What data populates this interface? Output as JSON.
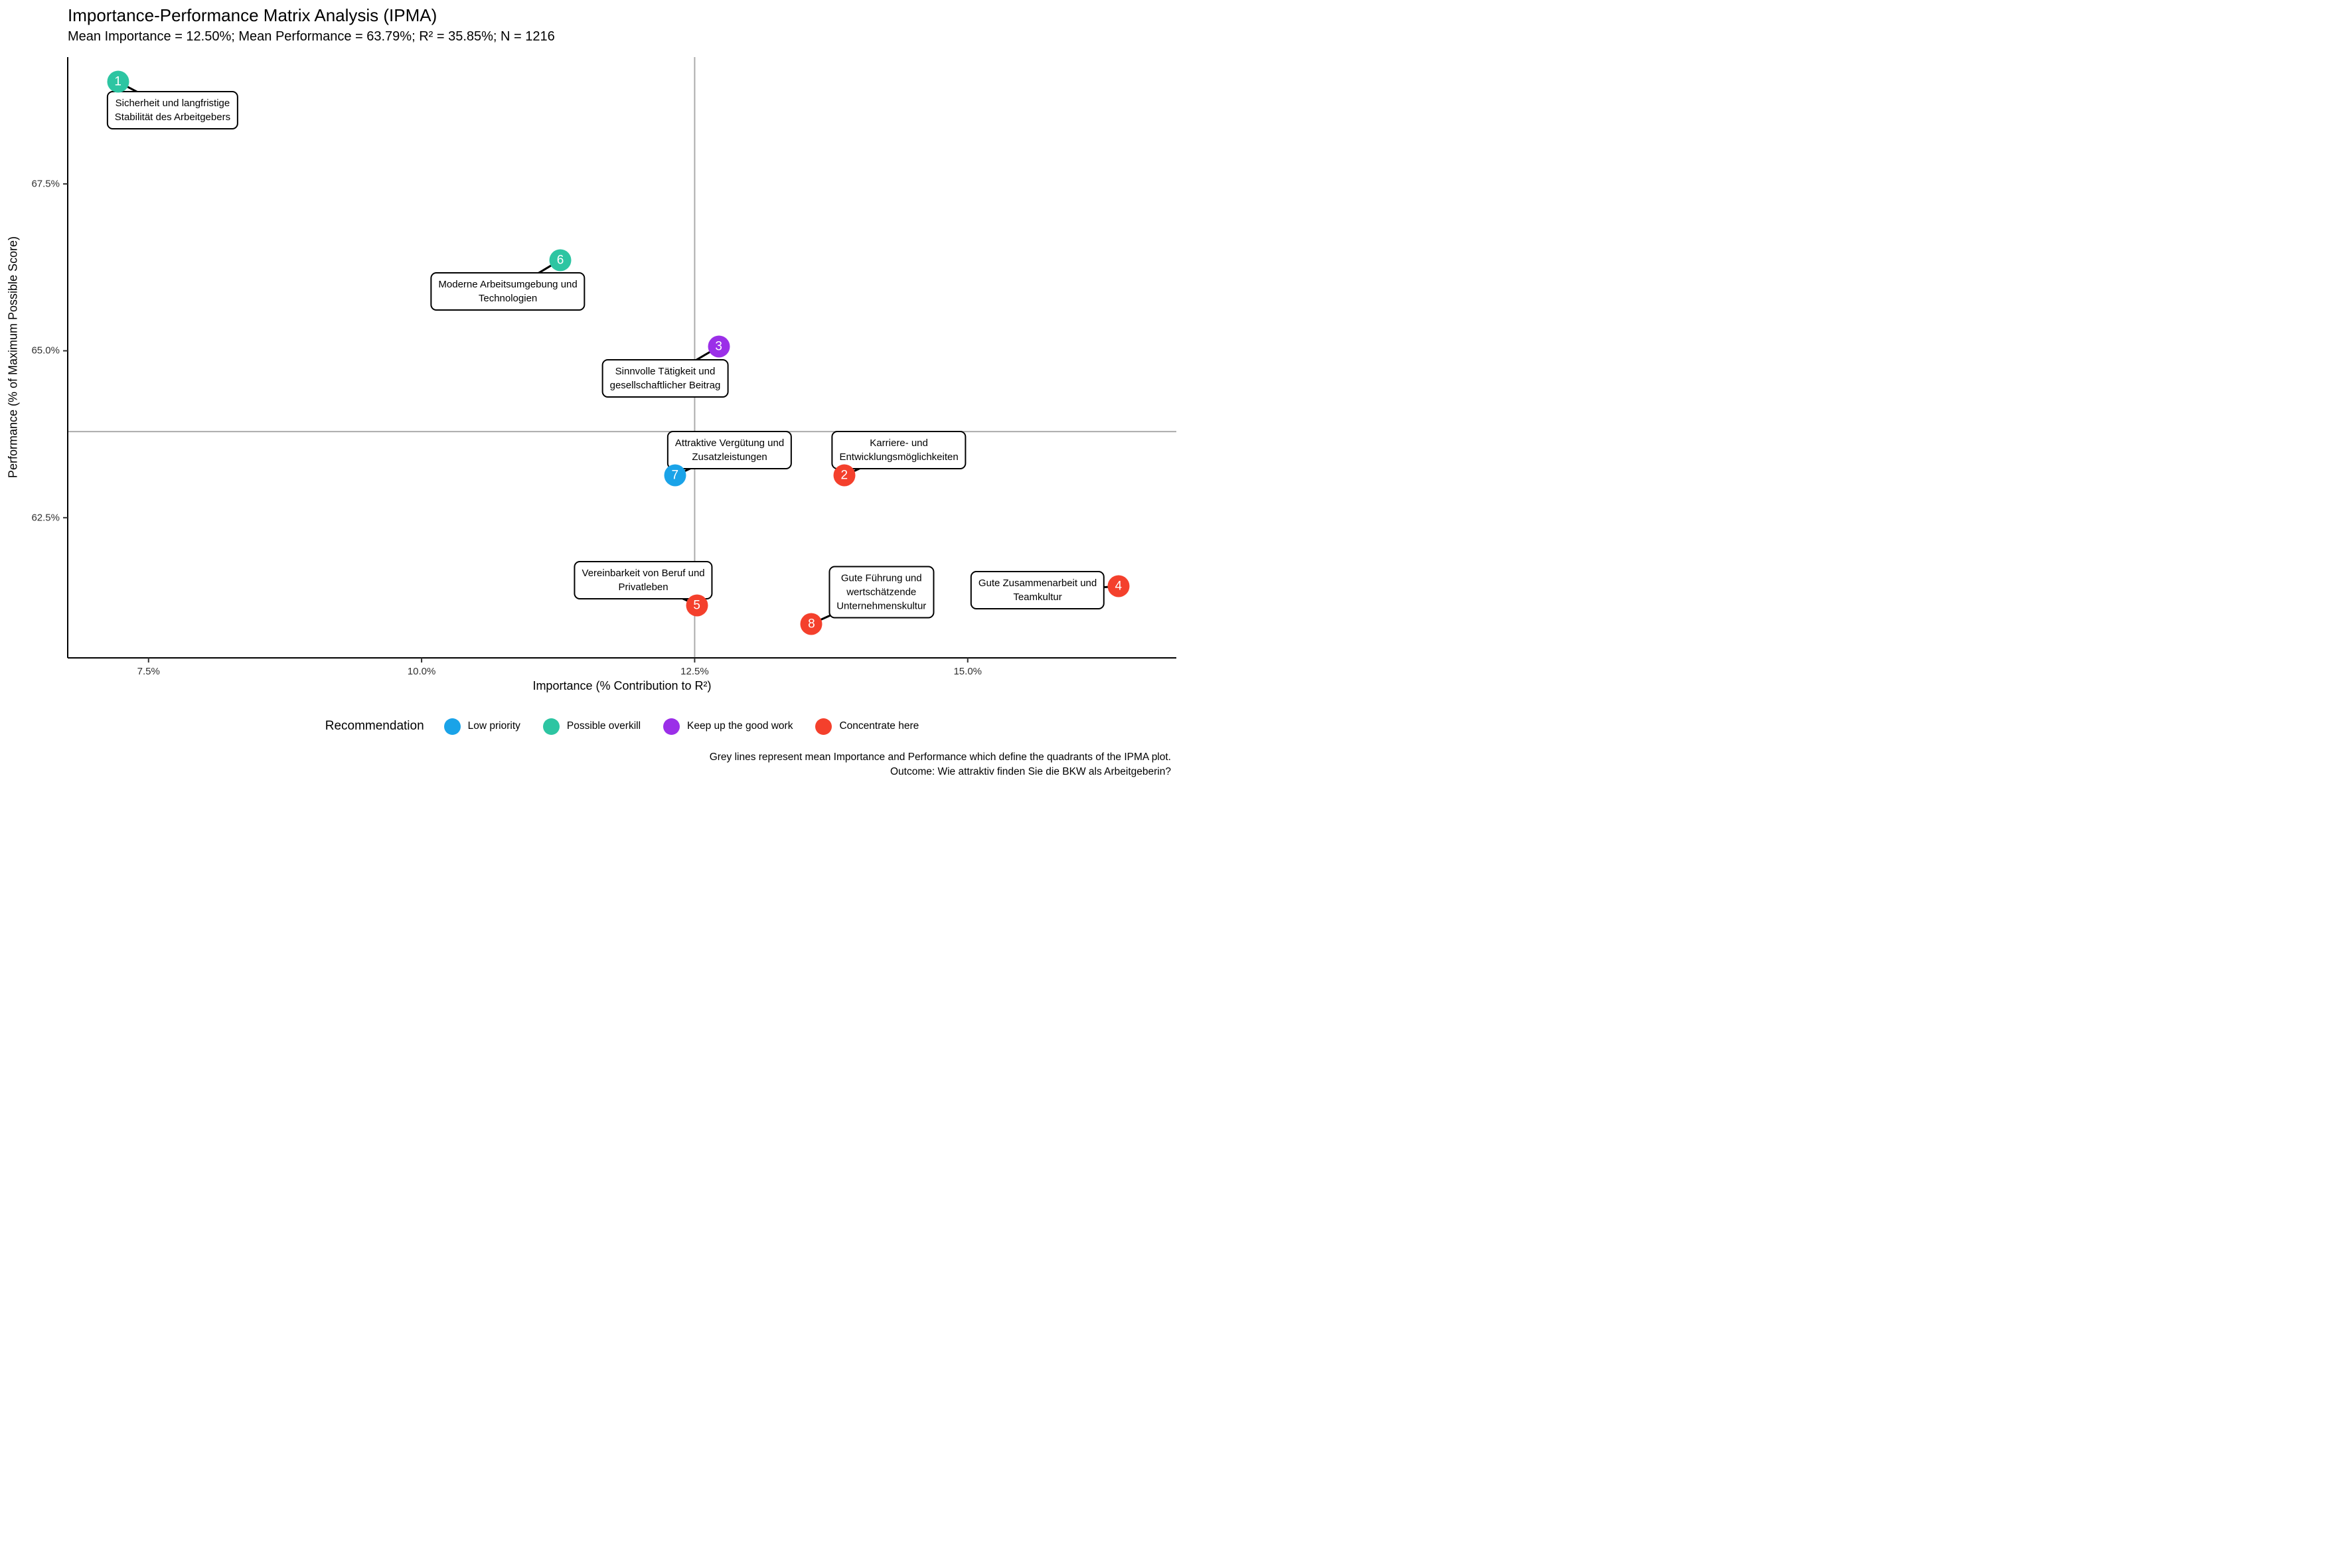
{
  "title": "Importance-Performance Matrix Analysis (IPMA)",
  "subtitle": "Mean Importance = 12.50%; Mean Performance = 63.79%; R² = 35.85%; N = 1216",
  "chart_data": {
    "type": "scatter",
    "title": "Importance-Performance Matrix Analysis (IPMA)",
    "subtitle": "Mean Importance = 12.50%; Mean Performance = 63.79%; R² = 35.85%; N = 1216",
    "xlabel": "Importance (% Contribution to R²)",
    "ylabel": "Performance (% of Maximum Possible Score)",
    "x_ticks": [
      {
        "value": 7.5,
        "label": "7.5%"
      },
      {
        "value": 10.0,
        "label": "10.0%"
      },
      {
        "value": 12.5,
        "label": "12.5%"
      },
      {
        "value": 15.0,
        "label": "15.0%"
      }
    ],
    "y_ticks": [
      {
        "value": 62.5,
        "label": "62.5%"
      },
      {
        "value": 65.0,
        "label": "65.0%"
      },
      {
        "value": 67.5,
        "label": "67.5%"
      }
    ],
    "xlim": [
      6.76,
      16.91
    ],
    "ylim": [
      60.4,
      69.4
    ],
    "grid": false,
    "mean_importance_pct": 12.5,
    "mean_performance_pct": 63.79,
    "r_squared_pct": 35.85,
    "n": 1216,
    "mean_line_color": "#ABABAB",
    "points": [
      {
        "id": "1",
        "x": 7.22,
        "y": 69.03,
        "recommendation": "Possible overkill",
        "label_lines": [
          "Sicherheit und langfristige",
          "Stabilität des Arbeitgebers"
        ],
        "label_x": 7.72,
        "label_y": 68.6
      },
      {
        "id": "6",
        "x": 11.27,
        "y": 66.36,
        "recommendation": "Possible overkill",
        "label_lines": [
          "Moderne Arbeitsumgebung und",
          "Technologien"
        ],
        "label_x": 10.79,
        "label_y": 65.89
      },
      {
        "id": "3",
        "x": 12.72,
        "y": 65.06,
        "recommendation": "Keep up the good work",
        "label_lines": [
          "Sinnvolle Tätigkeit und",
          "gesellschaftlicher Beitrag"
        ],
        "label_x": 12.23,
        "label_y": 64.59
      },
      {
        "id": "7",
        "x": 12.32,
        "y": 63.13,
        "recommendation": "Low priority",
        "label_lines": [
          "Attraktive Vergütung und",
          "Zusatzleistungen"
        ],
        "label_x": 12.82,
        "label_y": 63.51
      },
      {
        "id": "2",
        "x": 13.87,
        "y": 63.13,
        "recommendation": "Concentrate here",
        "label_lines": [
          "Karriere- und",
          "Entwicklungsmöglichkeiten"
        ],
        "label_x": 14.37,
        "label_y": 63.51
      },
      {
        "id": "5",
        "x": 12.52,
        "y": 61.19,
        "recommendation": "Concentrate here",
        "label_lines": [
          "Vereinbarkeit von Beruf und",
          "Privatleben"
        ],
        "label_x": 12.03,
        "label_y": 61.56
      },
      {
        "id": "8",
        "x": 13.57,
        "y": 60.91,
        "recommendation": "Concentrate here",
        "label_lines": [
          "Gute Führung und",
          "wertschätzende",
          "Unternehmenskultur"
        ],
        "label_x": 14.21,
        "label_y": 61.38
      },
      {
        "id": "4",
        "x": 16.38,
        "y": 61.47,
        "recommendation": "Concentrate here",
        "label_lines": [
          "Gute Zusammenarbeit und",
          "Teamkultur"
        ],
        "label_x": 15.64,
        "label_y": 61.41
      }
    ]
  },
  "legend": {
    "title": "Recommendation",
    "items": [
      {
        "label": "Low priority",
        "color": "#1AA3E8"
      },
      {
        "label": "Possible overkill",
        "color": "#2DC5A2"
      },
      {
        "label": "Keep up the good work",
        "color": "#9B2FE8"
      },
      {
        "label": "Concentrate here",
        "color": "#F4402C"
      }
    ]
  },
  "caption": {
    "line1": "Grey lines represent mean Importance and Performance which define the quadrants of the IPMA plot.",
    "line2": "Outcome: Wie attraktiv finden Sie die BKW als Arbeitgeberin?"
  }
}
